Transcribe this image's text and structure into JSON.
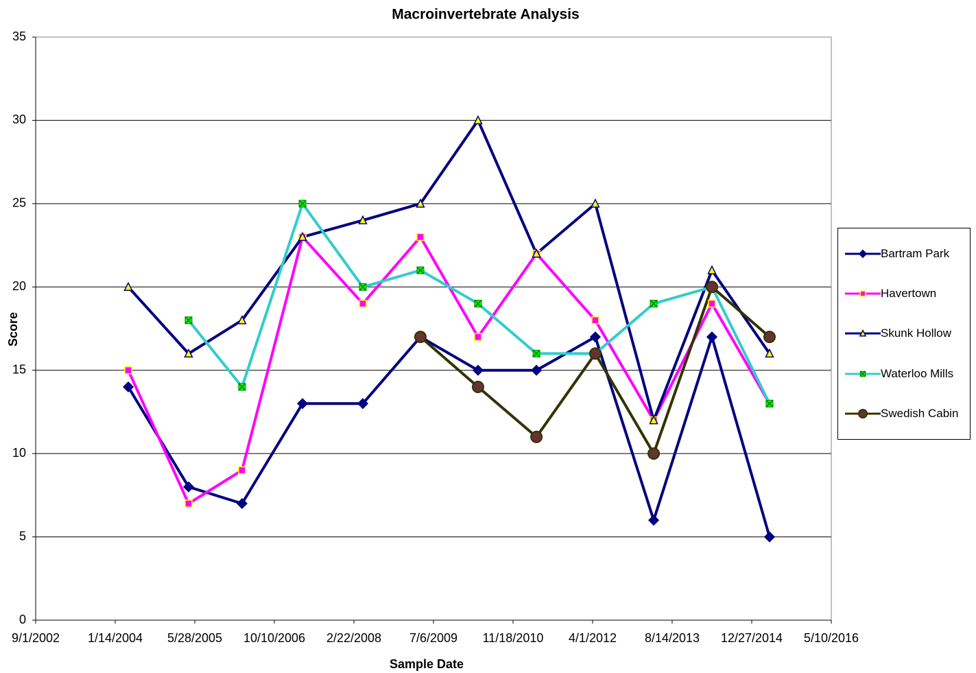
{
  "chart_data": {
    "type": "line",
    "title": "Macroinvertebrate Analysis",
    "x_label": "Sample Date",
    "y_label": "Score",
    "x": [
      "4/5/2004",
      "4/19/2005",
      "3/21/2006",
      "4/5/2007",
      "4/18/2008",
      "4/15/2009",
      "4/12/2010",
      "4/14/2011",
      "4/18/2012",
      "4/20/2013",
      "4/21/2014",
      "4/18/2015"
    ],
    "xlim": [
      "9/1/2002",
      "5/10/2016"
    ],
    "xticks": [
      "9/1/2002",
      "1/14/2004",
      "5/28/2005",
      "10/10/2006",
      "2/22/2008",
      "7/6/2009",
      "11/18/2010",
      "4/1/2012",
      "8/14/2013",
      "12/27/2014",
      "5/10/2016"
    ],
    "ylim": [
      0,
      35
    ],
    "yticks": [
      0,
      5,
      10,
      15,
      20,
      25,
      30,
      35
    ],
    "grid": true,
    "legend": "right",
    "series": [
      {
        "name": "Bartram Park",
        "color": "#000080",
        "marker": "diamond",
        "marker_fill": "#000080",
        "marker_edge": "#000080",
        "values": [
          14,
          8,
          7,
          13,
          13,
          17,
          15,
          15,
          17,
          6,
          17,
          5
        ]
      },
      {
        "name": "Havertown",
        "color": "#ff00ff",
        "marker": "square",
        "marker_fill": "#ff00ff",
        "marker_edge": "#ffff00",
        "values": [
          15,
          7,
          9,
          23,
          19,
          23,
          17,
          22,
          18,
          12,
          19,
          13
        ]
      },
      {
        "name": "Skunk Hollow",
        "color": "#000080",
        "marker": "triangle",
        "marker_fill": "#ffff00",
        "marker_edge": "#000080",
        "values": [
          20,
          16,
          18,
          23,
          24,
          25,
          30,
          22,
          25,
          12,
          21,
          16
        ]
      },
      {
        "name": "Waterloo Mills",
        "color": "#33cccc",
        "marker": "xsquare",
        "marker_fill": "#00ff00",
        "marker_edge": "#008000",
        "values": [
          null,
          18,
          14,
          25,
          20,
          21,
          19,
          16,
          16,
          19,
          20,
          13
        ]
      },
      {
        "name": "Swedish Cabin",
        "color": "#333300",
        "marker": "circle",
        "marker_fill": "#663333",
        "marker_edge": "#333300",
        "values": [
          null,
          null,
          null,
          null,
          null,
          17,
          14,
          11,
          16,
          10,
          20,
          17
        ]
      }
    ]
  }
}
